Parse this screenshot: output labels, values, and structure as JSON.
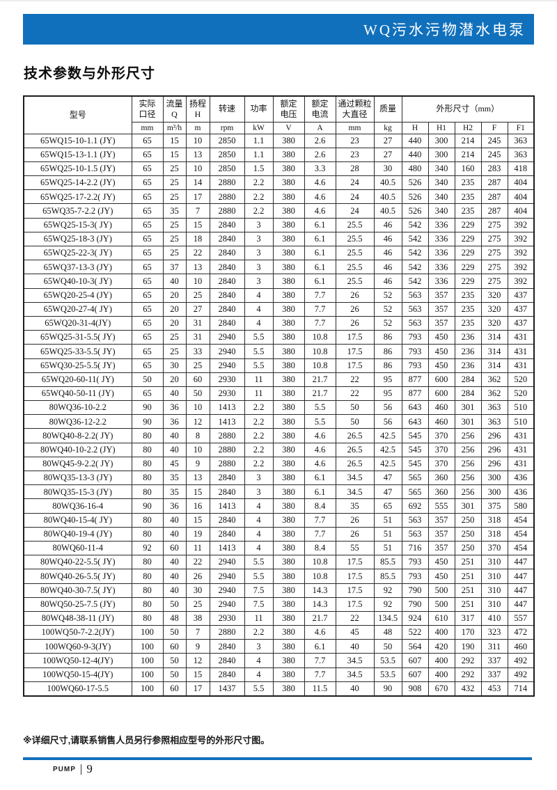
{
  "header": {
    "product_title": "WQ污水污物潜水电泵"
  },
  "page": {
    "section_title": "技术参数与外形尺寸",
    "footnote": "※详细尺寸,请联系销售人员另行参照相应型号的外形尺寸图。"
  },
  "footer": {
    "brand": "PUMP",
    "page_number": "9"
  },
  "table": {
    "model_header": "型号",
    "param_headers": [
      {
        "label": "实际口径",
        "lines": [
          "实际",
          "口径"
        ],
        "unit": "mm"
      },
      {
        "label": "流量Q",
        "lines": [
          "流量",
          "Q"
        ],
        "unit": "m³/h"
      },
      {
        "label": "扬程H",
        "lines": [
          "扬程",
          "H"
        ],
        "unit": "m"
      },
      {
        "label": "转速",
        "lines": [
          "转速"
        ],
        "unit": "rpm"
      },
      {
        "label": "功率",
        "lines": [
          "功率"
        ],
        "unit": "kW"
      },
      {
        "label": "额定电压",
        "lines": [
          "额定",
          "电压"
        ],
        "unit": "V"
      },
      {
        "label": "额定电流",
        "lines": [
          "额定",
          "电流"
        ],
        "unit": "A"
      },
      {
        "label": "通过颗粒大直径",
        "lines": [
          "通过颗粒",
          "大直径"
        ],
        "unit": "mm"
      },
      {
        "label": "质量",
        "lines": [
          "质量"
        ],
        "unit": "kg"
      }
    ],
    "dims_header": "外形尺寸（mm）",
    "dims_units": [
      "H",
      "H1",
      "H2",
      "F",
      "F1"
    ],
    "rows": [
      [
        "65WQ15-10-1.1 (JY)",
        "65",
        "15",
        "10",
        "2850",
        "1.1",
        "380",
        "2.6",
        "23",
        "27",
        "440",
        "300",
        "214",
        "245",
        "363"
      ],
      [
        "65WQ15-13-1.1 (JY)",
        "65",
        "15",
        "13",
        "2850",
        "1.1",
        "380",
        "2.6",
        "23",
        "27",
        "440",
        "300",
        "214",
        "245",
        "363"
      ],
      [
        "65WQ25-10-1.5 (JY)",
        "65",
        "25",
        "10",
        "2850",
        "1.5",
        "380",
        "3.3",
        "28",
        "30",
        "480",
        "340",
        "160",
        "283",
        "418"
      ],
      [
        "65WQ25-14-2.2 (JY)",
        "65",
        "25",
        "14",
        "2880",
        "2.2",
        "380",
        "4.6",
        "24",
        "40.5",
        "526",
        "340",
        "235",
        "287",
        "404"
      ],
      [
        "65WQ25-17-2.2( JY)",
        "65",
        "25",
        "17",
        "2880",
        "2.2",
        "380",
        "4.6",
        "24",
        "40.5",
        "526",
        "340",
        "235",
        "287",
        "404"
      ],
      [
        "65WQ35-7-2.2 (JY)",
        "65",
        "35",
        "7",
        "2880",
        "2.2",
        "380",
        "4.6",
        "24",
        "40.5",
        "526",
        "340",
        "235",
        "287",
        "404"
      ],
      [
        "65WQ25-15-3( JY)",
        "65",
        "25",
        "15",
        "2840",
        "3",
        "380",
        "6.1",
        "25.5",
        "46",
        "542",
        "336",
        "229",
        "275",
        "392"
      ],
      [
        "65WQ25-18-3 (JY)",
        "65",
        "25",
        "18",
        "2840",
        "3",
        "380",
        "6.1",
        "25.5",
        "46",
        "542",
        "336",
        "229",
        "275",
        "392"
      ],
      [
        "65WQ25-22-3( JY)",
        "65",
        "25",
        "22",
        "2840",
        "3",
        "380",
        "6.1",
        "25.5",
        "46",
        "542",
        "336",
        "229",
        "275",
        "392"
      ],
      [
        "65WQ37-13-3 (JY)",
        "65",
        "37",
        "13",
        "2840",
        "3",
        "380",
        "6.1",
        "25.5",
        "46",
        "542",
        "336",
        "229",
        "275",
        "392"
      ],
      [
        "65WQ40-10-3( JY)",
        "65",
        "40",
        "10",
        "2840",
        "3",
        "380",
        "6.1",
        "25.5",
        "46",
        "542",
        "336",
        "229",
        "275",
        "392"
      ],
      [
        "65WQ20-25-4 (JY)",
        "65",
        "20",
        "25",
        "2840",
        "4",
        "380",
        "7.7",
        "26",
        "52",
        "563",
        "357",
        "235",
        "320",
        "437"
      ],
      [
        "65WQ20-27-4( JY)",
        "65",
        "20",
        "27",
        "2840",
        "4",
        "380",
        "7.7",
        "26",
        "52",
        "563",
        "357",
        "235",
        "320",
        "437"
      ],
      [
        "65WQ20-31-4(JY)",
        "65",
        "20",
        "31",
        "2840",
        "4",
        "380",
        "7.7",
        "26",
        "52",
        "563",
        "357",
        "235",
        "320",
        "437"
      ],
      [
        "65WQ25-31-5.5( JY)",
        "65",
        "25",
        "31",
        "2940",
        "5.5",
        "380",
        "10.8",
        "17.5",
        "86",
        "793",
        "450",
        "236",
        "314",
        "431"
      ],
      [
        "65WQ25-33-5.5( JY)",
        "65",
        "25",
        "33",
        "2940",
        "5.5",
        "380",
        "10.8",
        "17.5",
        "86",
        "793",
        "450",
        "236",
        "314",
        "431"
      ],
      [
        "65WQ30-25-5.5( JY)",
        "65",
        "30",
        "25",
        "2940",
        "5.5",
        "380",
        "10.8",
        "17.5",
        "86",
        "793",
        "450",
        "236",
        "314",
        "431"
      ],
      [
        "65WQ20-60-11( JY)",
        "50",
        "20",
        "60",
        "2930",
        "11",
        "380",
        "21.7",
        "22",
        "95",
        "877",
        "600",
        "284",
        "362",
        "520"
      ],
      [
        "65WQ40-50-11 (JY)",
        "65",
        "40",
        "50",
        "2930",
        "11",
        "380",
        "21.7",
        "22",
        "95",
        "877",
        "600",
        "284",
        "362",
        "520"
      ],
      [
        "80WQ36-10-2.2",
        "90",
        "36",
        "10",
        "1413",
        "2.2",
        "380",
        "5.5",
        "50",
        "56",
        "643",
        "460",
        "301",
        "363",
        "510"
      ],
      [
        "80WQ36-12-2.2",
        "90",
        "36",
        "12",
        "1413",
        "2.2",
        "380",
        "5.5",
        "50",
        "56",
        "643",
        "460",
        "301",
        "363",
        "510"
      ],
      [
        "80WQ40-8-2.2( JY)",
        "80",
        "40",
        "8",
        "2880",
        "2.2",
        "380",
        "4.6",
        "26.5",
        "42.5",
        "545",
        "370",
        "256",
        "296",
        "431"
      ],
      [
        "80WQ40-10-2.2 (JY)",
        "80",
        "40",
        "10",
        "2880",
        "2.2",
        "380",
        "4.6",
        "26.5",
        "42.5",
        "545",
        "370",
        "256",
        "296",
        "431"
      ],
      [
        "80WQ45-9-2.2( JY)",
        "80",
        "45",
        "9",
        "2880",
        "2.2",
        "380",
        "4.6",
        "26.5",
        "42.5",
        "545",
        "370",
        "256",
        "296",
        "431"
      ],
      [
        "80WQ35-13-3 (JY)",
        "80",
        "35",
        "13",
        "2840",
        "3",
        "380",
        "6.1",
        "34.5",
        "47",
        "565",
        "360",
        "256",
        "300",
        "436"
      ],
      [
        "80WQ35-15-3 (JY)",
        "80",
        "35",
        "15",
        "2840",
        "3",
        "380",
        "6.1",
        "34.5",
        "47",
        "565",
        "360",
        "256",
        "300",
        "436"
      ],
      [
        "80WQ36-16-4",
        "90",
        "36",
        "16",
        "1413",
        "4",
        "380",
        "8.4",
        "35",
        "65",
        "692",
        "555",
        "301",
        "375",
        "580"
      ],
      [
        "80WQ40-15-4( JY)",
        "80",
        "40",
        "15",
        "2840",
        "4",
        "380",
        "7.7",
        "26",
        "51",
        "563",
        "357",
        "250",
        "318",
        "454"
      ],
      [
        "80WQ40-19-4 (JY)",
        "80",
        "40",
        "19",
        "2840",
        "4",
        "380",
        "7.7",
        "26",
        "51",
        "563",
        "357",
        "250",
        "318",
        "454"
      ],
      [
        "80WQ60-11-4",
        "92",
        "60",
        "11",
        "1413",
        "4",
        "380",
        "8.4",
        "55",
        "51",
        "716",
        "357",
        "250",
        "370",
        "454"
      ],
      [
        "80WQ40-22-5.5( JY)",
        "80",
        "40",
        "22",
        "2940",
        "5.5",
        "380",
        "10.8",
        "17.5",
        "85.5",
        "793",
        "450",
        "251",
        "310",
        "447"
      ],
      [
        "80WQ40-26-5.5( JY)",
        "80",
        "40",
        "26",
        "2940",
        "5.5",
        "380",
        "10.8",
        "17.5",
        "85.5",
        "793",
        "450",
        "251",
        "310",
        "447"
      ],
      [
        "80WQ40-30-7.5( JY)",
        "80",
        "40",
        "30",
        "2940",
        "7.5",
        "380",
        "14.3",
        "17.5",
        "92",
        "790",
        "500",
        "251",
        "310",
        "447"
      ],
      [
        "80WQ50-25-7.5 (JY)",
        "80",
        "50",
        "25",
        "2940",
        "7.5",
        "380",
        "14.3",
        "17.5",
        "92",
        "790",
        "500",
        "251",
        "310",
        "447"
      ],
      [
        "80WQ48-38-11 (JY)",
        "80",
        "48",
        "38",
        "2930",
        "11",
        "380",
        "21.7",
        "22",
        "134.5",
        "924",
        "610",
        "317",
        "410",
        "557"
      ],
      [
        "100WQ50-7-2.2(JY)",
        "100",
        "50",
        "7",
        "2880",
        "2.2",
        "380",
        "4.6",
        "45",
        "48",
        "522",
        "400",
        "170",
        "323",
        "472"
      ],
      [
        "100WQ60-9-3(JY)",
        "100",
        "60",
        "9",
        "2840",
        "3",
        "380",
        "6.1",
        "40",
        "50",
        "564",
        "420",
        "190",
        "311",
        "460"
      ],
      [
        "100WQ50-12-4(JY)",
        "100",
        "50",
        "12",
        "2840",
        "4",
        "380",
        "7.7",
        "34.5",
        "53.5",
        "607",
        "400",
        "292",
        "337",
        "492"
      ],
      [
        "100WQ50-15-4(JY)",
        "100",
        "50",
        "15",
        "2840",
        "4",
        "380",
        "7.7",
        "34.5",
        "53.5",
        "607",
        "400",
        "292",
        "337",
        "492"
      ],
      [
        "100WQ60-17-5.5",
        "100",
        "60",
        "17",
        "1437",
        "5.5",
        "380",
        "11.5",
        "40",
        "90",
        "908",
        "670",
        "432",
        "453",
        "714"
      ]
    ]
  }
}
